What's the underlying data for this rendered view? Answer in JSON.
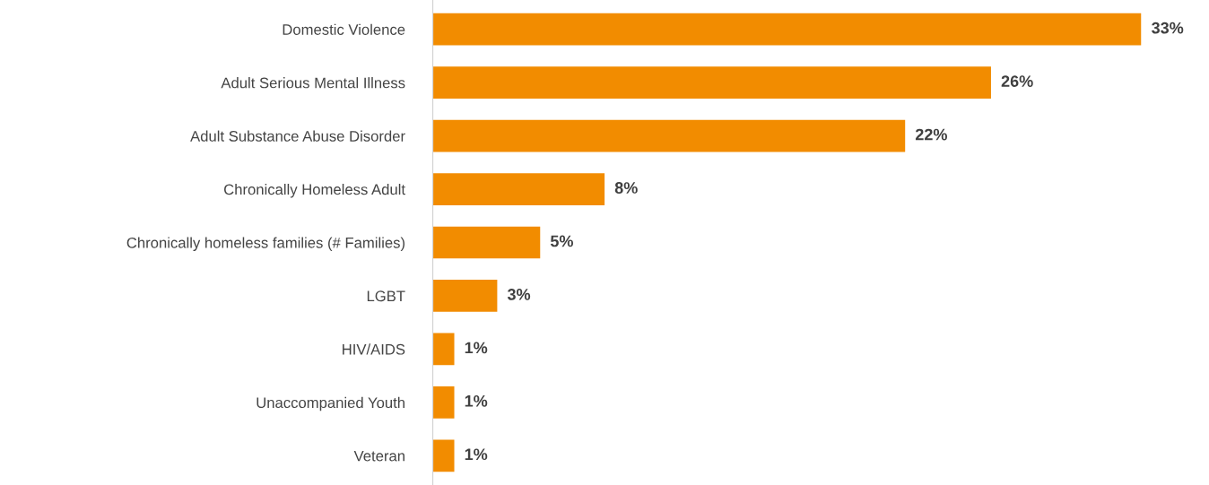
{
  "chart_data": {
    "type": "bar",
    "orientation": "horizontal",
    "categories": [
      "Domestic Violence",
      "Adult Serious Mental Illness",
      "Adult Substance Abuse Disorder",
      "Chronically Homeless Adult",
      "Chronically homeless families (# Families)",
      "LGBT",
      "HIV/AIDS",
      "Unaccompanied Youth",
      "Veteran"
    ],
    "values": [
      33,
      26,
      22,
      8,
      5,
      3,
      1,
      1,
      1
    ],
    "value_labels": [
      "33%",
      "26%",
      "22%",
      "8%",
      "5%",
      "3%",
      "1%",
      "1%",
      "1%"
    ],
    "color": "#f28c00",
    "tick_labels": "y",
    "grid": false,
    "legend": false
  }
}
